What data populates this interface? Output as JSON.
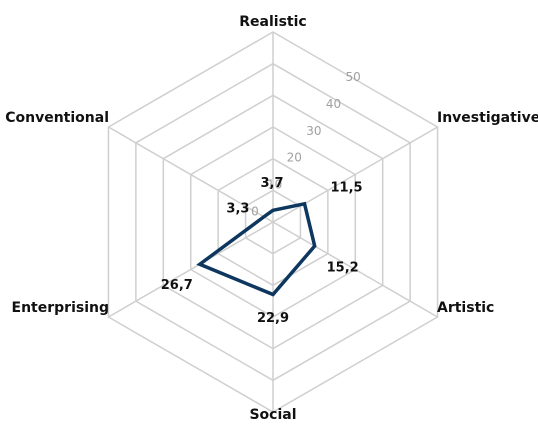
{
  "chart_data": {
    "type": "radar",
    "categories": [
      "Realistic",
      "Investigative",
      "Artistic",
      "Social",
      "Enterprising",
      "Conventional"
    ],
    "series": [
      {
        "color": "#0e3760",
        "values": [
          3.7,
          11.5,
          15.2,
          22.9,
          26.7,
          3.3
        ],
        "value_labels": [
          "3,7",
          "11,5",
          "15,2",
          "22,9",
          "26,7",
          "3,3"
        ]
      }
    ],
    "ylim": [
      0,
      60
    ],
    "yticks": [
      0,
      10,
      20,
      30,
      40,
      50
    ],
    "grid": true
  }
}
